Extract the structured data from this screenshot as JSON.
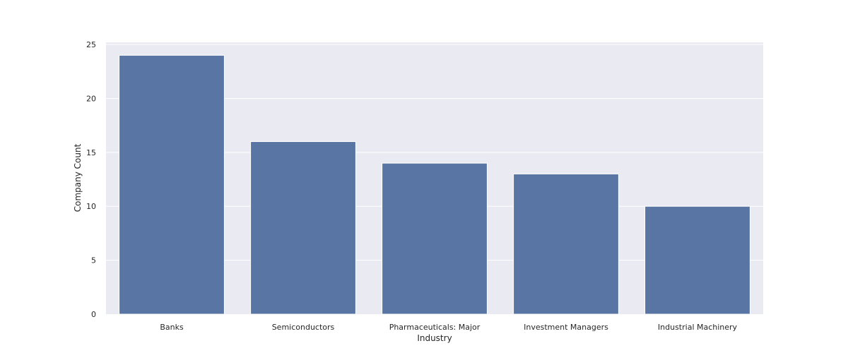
{
  "chart_data": {
    "type": "bar",
    "title": "",
    "xlabel": "Industry",
    "ylabel": "Company Count",
    "categories": [
      "Banks",
      "Semiconductors",
      "Pharmaceuticals: Major",
      "Investment Managers",
      "Industrial Machinery"
    ],
    "values": [
      24,
      16,
      14,
      13,
      10
    ],
    "ylim": [
      0,
      25
    ],
    "yticks": [
      "0",
      "5",
      "10",
      "15",
      "20",
      "25"
    ],
    "grid": true,
    "legend": "none"
  },
  "colors": {
    "bar": "#5875a4",
    "plot_background": "#eaeaf2",
    "grid": "#ffffff",
    "text": "#262626"
  }
}
